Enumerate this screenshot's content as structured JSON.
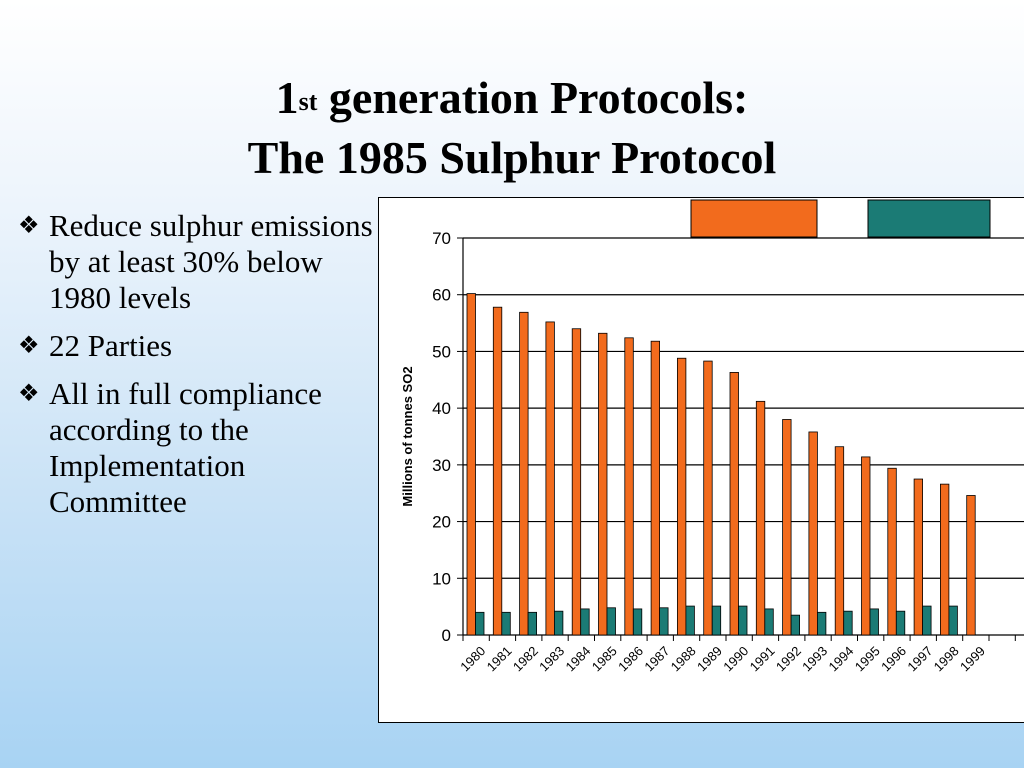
{
  "title": {
    "line1_pre": "1",
    "line1_sup": "st",
    "line1_post": " generation Protocols:",
    "line2": "The 1985 Sulphur Protocol"
  },
  "bullet_icon": "diamond-bullet-icon",
  "bullets": [
    "Reduce sulphur emissions by at least 30% below 1980 levels",
    "22 Parties",
    "All in full compliance according to the Implementation Committee"
  ],
  "chart_data": {
    "type": "bar",
    "ylabel": "Millions of tonnes SO2",
    "xlabel": "",
    "ylim": [
      0,
      70
    ],
    "yticks": [
      0,
      10,
      20,
      30,
      40,
      50,
      60,
      70
    ],
    "grid": true,
    "legend": "top, entries without visible text",
    "categories": [
      "1980",
      "1981",
      "1982",
      "1983",
      "1984",
      "1985",
      "1986",
      "1987",
      "1988",
      "1989",
      "1990",
      "1991",
      "1992",
      "1993",
      "1994",
      "1995",
      "1996",
      "1997",
      "1998",
      "1999"
    ],
    "series": [
      {
        "color": "#f26b1d",
        "values": [
          60.2,
          57.8,
          56.9,
          55.2,
          54.0,
          53.2,
          52.4,
          51.8,
          48.8,
          48.3,
          46.3,
          41.2,
          38.0,
          35.8,
          33.2,
          31.4,
          29.4,
          27.5,
          26.6,
          24.6
        ]
      },
      {
        "color": "#1b7b75",
        "values": [
          4.0,
          4.0,
          4.0,
          4.2,
          4.6,
          4.8,
          4.6,
          4.8,
          5.1,
          5.1,
          5.1,
          4.6,
          3.5,
          4.0,
          4.2,
          4.6,
          4.2,
          5.1,
          5.1,
          0
        ]
      }
    ]
  }
}
